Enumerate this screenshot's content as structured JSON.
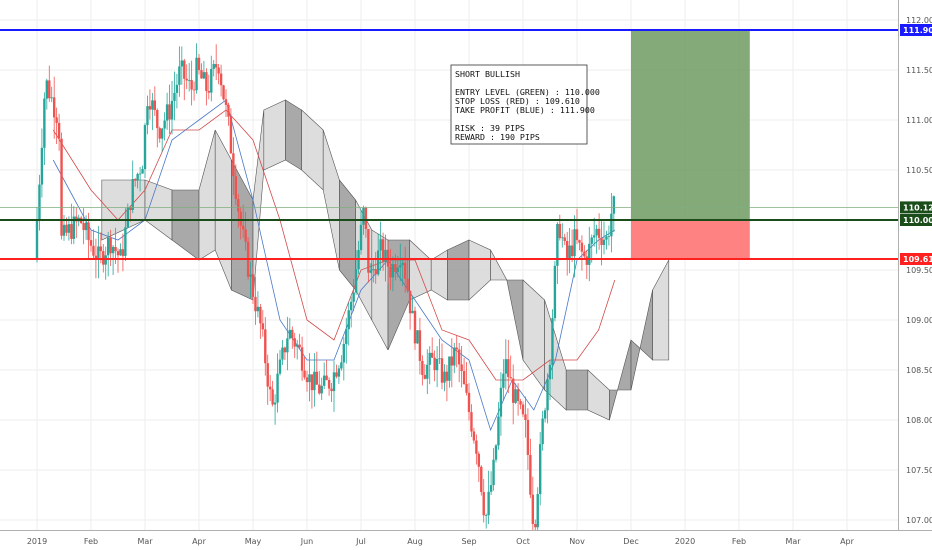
{
  "chart_data": {
    "type": "candlestick",
    "title": "",
    "xlabel": "",
    "ylabel": "",
    "ylim": [
      106.9,
      112.2
    ],
    "x_tick_labels": [
      "2019",
      "Feb",
      "Mar",
      "Apr",
      "May",
      "Jun",
      "Jul",
      "Aug",
      "Sep",
      "Oct",
      "Nov",
      "Dec",
      "2020",
      "Feb",
      "Mar",
      "Apr"
    ],
    "y_ticks": [
      107.0,
      107.5,
      108.0,
      108.5,
      109.0,
      109.5,
      110.0,
      110.5,
      111.0,
      111.5,
      112.0
    ],
    "y_tick_labels": [
      "107.000",
      "107.500",
      "108.000",
      "108.500",
      "109.000",
      "109.500",
      "110.000",
      "110.500",
      "111.000",
      "111.500",
      "112.000"
    ],
    "grid": true,
    "levels": [
      {
        "label": "111.900",
        "value": 111.9,
        "color": "#1a1aff"
      },
      {
        "label": "110.000",
        "value": 110.0,
        "color": "#1b4d1b"
      },
      {
        "label": "109.610",
        "value": 109.61,
        "color": "#ff2020"
      }
    ],
    "current_price": {
      "label": "110.126",
      "value": 110.126,
      "color": "#1b4d1b"
    },
    "position_zones": {
      "start_month": 11.0,
      "end_month": 13.2,
      "take_profit": 111.9,
      "entry": 110.0,
      "stop_loss": 109.61,
      "profit_color": "#6f9b63",
      "loss_color": "#ff7b7b"
    },
    "annotation_lines": [
      "SHORT BULLISH",
      "",
      "ENTRY LEVEL (GREEN) : 110.000",
      "STOP LOSS (RED) : 109.610",
      "TAKE PROFIT (BLUE) : 111.900",
      "",
      "RISK : 39 PIPS",
      "REWARD : 190 PIPS"
    ],
    "price_path": [
      [
        0.0,
        109.6
      ],
      [
        0.2,
        111.4
      ],
      [
        0.45,
        111.0
      ],
      [
        0.5,
        109.8
      ],
      [
        0.65,
        109.9
      ],
      [
        0.85,
        110.0
      ],
      [
        1.0,
        109.8
      ],
      [
        1.2,
        109.6
      ],
      [
        1.4,
        109.8
      ],
      [
        1.6,
        109.6
      ],
      [
        1.8,
        110.3
      ],
      [
        2.0,
        110.6
      ],
      [
        2.1,
        111.3
      ],
      [
        2.3,
        110.9
      ],
      [
        2.5,
        111.1
      ],
      [
        2.7,
        111.5
      ],
      [
        2.9,
        111.3
      ],
      [
        3.0,
        111.5
      ],
      [
        3.2,
        111.3
      ],
      [
        3.4,
        111.6
      ],
      [
        3.6,
        110.9
      ],
      [
        3.8,
        110.0
      ],
      [
        4.0,
        109.4
      ],
      [
        4.2,
        108.9
      ],
      [
        4.4,
        108.1
      ],
      [
        4.5,
        108.4
      ],
      [
        4.7,
        108.9
      ],
      [
        4.9,
        108.7
      ],
      [
        5.1,
        108.4
      ],
      [
        5.3,
        108.3
      ],
      [
        5.5,
        108.4
      ],
      [
        5.7,
        108.7
      ],
      [
        5.9,
        109.3
      ],
      [
        6.1,
        110.1
      ],
      [
        6.2,
        109.4
      ],
      [
        6.4,
        109.7
      ],
      [
        6.6,
        109.5
      ],
      [
        6.8,
        109.7
      ],
      [
        7.0,
        109.0
      ],
      [
        7.2,
        108.5
      ],
      [
        7.4,
        108.6
      ],
      [
        7.6,
        108.4
      ],
      [
        7.8,
        108.7
      ],
      [
        8.0,
        108.2
      ],
      [
        8.2,
        107.7
      ],
      [
        8.35,
        107.0
      ],
      [
        8.5,
        107.5
      ],
      [
        8.7,
        108.6
      ],
      [
        8.9,
        108.2
      ],
      [
        9.1,
        107.9
      ],
      [
        9.25,
        106.9
      ],
      [
        9.4,
        107.9
      ],
      [
        9.55,
        108.7
      ],
      [
        9.7,
        110.0
      ],
      [
        9.85,
        109.6
      ],
      [
        10.0,
        109.8
      ],
      [
        10.2,
        109.6
      ],
      [
        10.4,
        109.9
      ],
      [
        10.6,
        109.8
      ],
      [
        10.7,
        110.13
      ]
    ],
    "ichimoku_cloud_upper": [
      [
        1.2,
        110.4
      ],
      [
        2.0,
        110.4
      ],
      [
        2.5,
        110.3
      ],
      [
        3.0,
        110.3
      ],
      [
        3.3,
        110.9
      ],
      [
        3.6,
        110.6
      ],
      [
        4.0,
        110.2
      ],
      [
        4.2,
        111.1
      ],
      [
        4.6,
        111.2
      ],
      [
        4.9,
        111.1
      ],
      [
        5.3,
        110.9
      ],
      [
        5.6,
        110.4
      ],
      [
        5.9,
        110.2
      ],
      [
        6.2,
        109.9
      ],
      [
        6.5,
        109.8
      ],
      [
        6.9,
        109.8
      ],
      [
        7.3,
        109.6
      ],
      [
        7.6,
        109.7
      ],
      [
        8.0,
        109.8
      ],
      [
        8.4,
        109.7
      ],
      [
        8.7,
        109.4
      ],
      [
        9.0,
        109.4
      ],
      [
        9.4,
        109.2
      ],
      [
        9.8,
        108.5
      ],
      [
        10.2,
        108.5
      ],
      [
        10.6,
        108.3
      ],
      [
        11.0,
        108.3
      ],
      [
        11.4,
        109.3
      ],
      [
        11.7,
        109.6
      ]
    ],
    "ichimoku_cloud_lower": [
      [
        1.2,
        109.8
      ],
      [
        2.0,
        110.0
      ],
      [
        2.5,
        109.8
      ],
      [
        3.0,
        109.6
      ],
      [
        3.3,
        109.7
      ],
      [
        3.6,
        109.3
      ],
      [
        4.0,
        109.2
      ],
      [
        4.2,
        110.5
      ],
      [
        4.6,
        110.6
      ],
      [
        4.9,
        110.5
      ],
      [
        5.3,
        110.3
      ],
      [
        5.6,
        109.5
      ],
      [
        5.9,
        109.3
      ],
      [
        6.2,
        109.0
      ],
      [
        6.5,
        108.7
      ],
      [
        6.9,
        109.2
      ],
      [
        7.3,
        109.3
      ],
      [
        7.6,
        109.2
      ],
      [
        8.0,
        109.2
      ],
      [
        8.4,
        109.4
      ],
      [
        8.7,
        109.4
      ],
      [
        9.0,
        108.6
      ],
      [
        9.4,
        108.3
      ],
      [
        9.8,
        108.1
      ],
      [
        10.2,
        108.1
      ],
      [
        10.6,
        108.0
      ],
      [
        11.0,
        108.8
      ],
      [
        11.4,
        108.6
      ],
      [
        11.7,
        108.6
      ]
    ],
    "tenkan_line": [
      [
        0.3,
        110.6
      ],
      [
        1.0,
        109.9
      ],
      [
        1.5,
        109.8
      ],
      [
        2.0,
        110.0
      ],
      [
        2.5,
        110.8
      ],
      [
        3.0,
        111.0
      ],
      [
        3.5,
        111.2
      ],
      [
        4.0,
        110.2
      ],
      [
        4.5,
        109.0
      ],
      [
        5.0,
        108.6
      ],
      [
        5.5,
        108.6
      ],
      [
        6.0,
        109.3
      ],
      [
        6.5,
        109.6
      ],
      [
        7.0,
        109.2
      ],
      [
        7.5,
        108.8
      ],
      [
        8.0,
        108.6
      ],
      [
        8.4,
        107.9
      ],
      [
        8.8,
        108.4
      ],
      [
        9.2,
        108.1
      ],
      [
        9.6,
        108.6
      ],
      [
        10.0,
        109.6
      ],
      [
        10.4,
        109.8
      ],
      [
        10.7,
        109.9
      ]
    ],
    "kijun_line": [
      [
        0.3,
        110.9
      ],
      [
        1.0,
        110.3
      ],
      [
        1.5,
        110.0
      ],
      [
        2.0,
        110.3
      ],
      [
        2.5,
        110.9
      ],
      [
        3.0,
        110.9
      ],
      [
        3.5,
        111.1
      ],
      [
        4.0,
        110.8
      ],
      [
        4.5,
        110.0
      ],
      [
        5.0,
        109.0
      ],
      [
        5.5,
        108.8
      ],
      [
        6.0,
        109.5
      ],
      [
        6.5,
        109.6
      ],
      [
        7.0,
        109.6
      ],
      [
        7.5,
        108.9
      ],
      [
        8.0,
        108.8
      ],
      [
        8.5,
        108.4
      ],
      [
        9.0,
        108.4
      ],
      [
        9.5,
        108.6
      ],
      [
        10.0,
        108.6
      ],
      [
        10.4,
        108.9
      ],
      [
        10.7,
        109.4
      ]
    ]
  }
}
